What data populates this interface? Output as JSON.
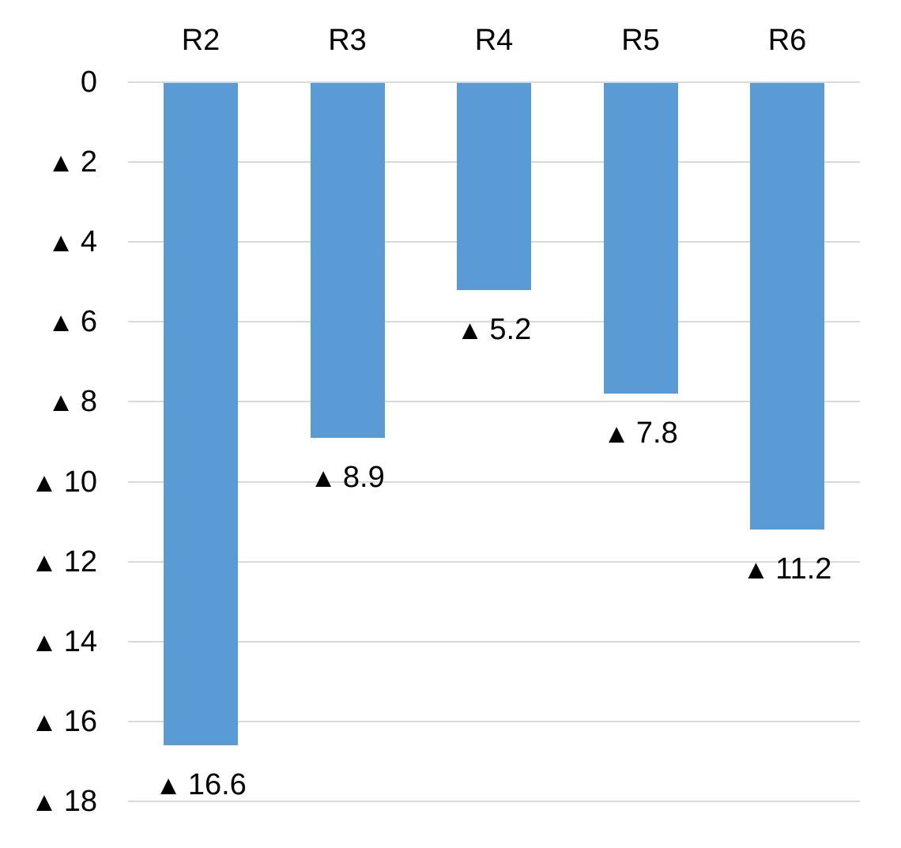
{
  "chart_data": {
    "type": "bar",
    "title": "",
    "xlabel": "",
    "ylabel": "",
    "orientation": "vertical-downward",
    "axis_note": "value axis increases downward; triangle marker denotes values below zero",
    "categories": [
      "R2",
      "R3",
      "R4",
      "R5",
      "R6"
    ],
    "values": [
      16.6,
      8.9,
      5.2,
      7.8,
      11.2
    ],
    "data_labels": [
      "▲ 16.6",
      "▲ 8.9",
      "▲ 5.2",
      "▲ 7.8",
      "▲ 11.2"
    ],
    "negative_marker": "▲",
    "ylim": [
      0,
      18
    ],
    "y_tick_step": 2,
    "y_ticks": [
      {
        "value": 0,
        "marker": "",
        "label": "0"
      },
      {
        "value": 2,
        "marker": "▲",
        "label": "2"
      },
      {
        "value": 4,
        "marker": "▲",
        "label": "4"
      },
      {
        "value": 6,
        "marker": "▲",
        "label": "6"
      },
      {
        "value": 8,
        "marker": "▲",
        "label": "8"
      },
      {
        "value": 10,
        "marker": "▲",
        "label": "10"
      },
      {
        "value": 12,
        "marker": "▲",
        "label": "12"
      },
      {
        "value": 14,
        "marker": "▲",
        "label": "14"
      },
      {
        "value": 16,
        "marker": "▲",
        "label": "16"
      },
      {
        "value": 18,
        "marker": "▲",
        "label": "18"
      }
    ],
    "grid": true,
    "legend": "none",
    "colors": {
      "bar": "#5B9BD5",
      "gridline": "#D9D9D9",
      "text": "#000000",
      "background": "#FFFFFF"
    }
  }
}
